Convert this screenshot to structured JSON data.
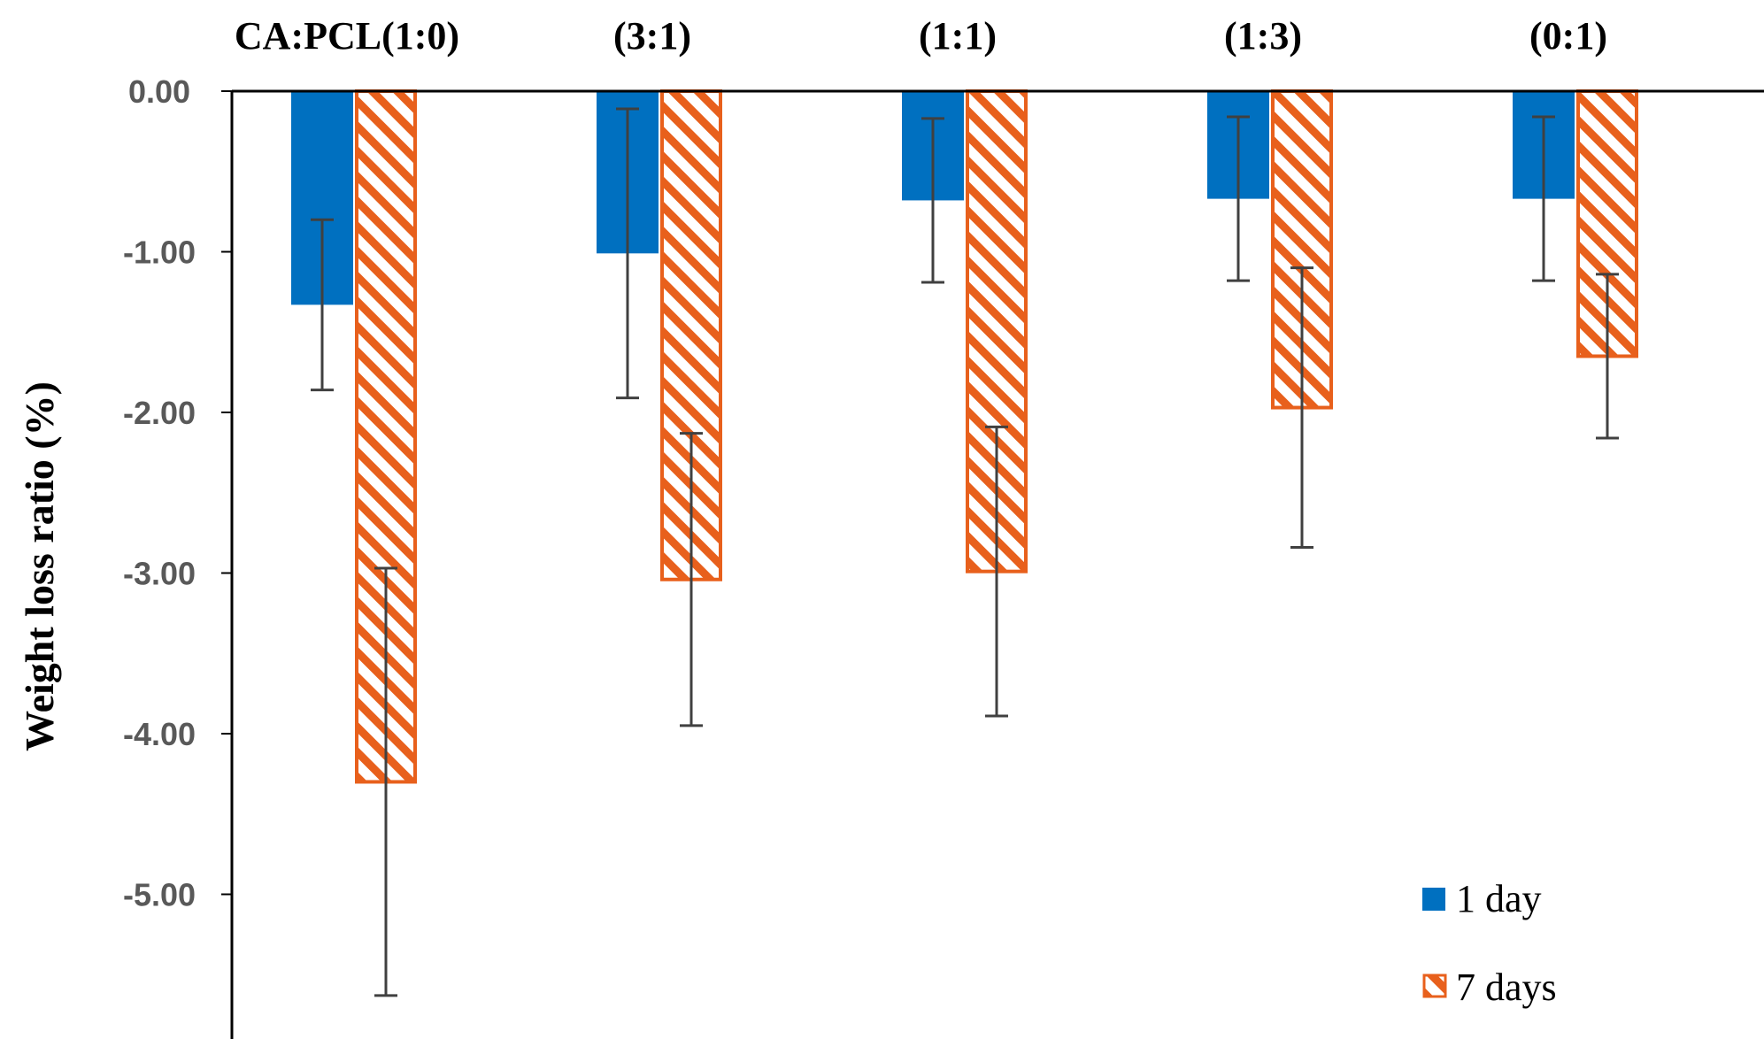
{
  "chart_data": {
    "type": "bar",
    "title": "",
    "xlabel": "",
    "ylabel": "Weight loss ratio (%)",
    "categories": [
      "CA:PCL(1:0)",
      "(3:1)",
      "(1:1)",
      "(1:3)",
      "(0:1)"
    ],
    "category_axis_position": "top",
    "ylim": [
      -5.8,
      0
    ],
    "yticks": [
      0,
      -1,
      -2,
      -3,
      -4,
      -5
    ],
    "ytick_labels": [
      "0.00",
      "-1.00",
      "-2.00",
      "-3.00",
      "-4.00",
      "-5.00"
    ],
    "grid": false,
    "legend_position": "bottom-right",
    "series": [
      {
        "name": "1 day",
        "color": "#0070C0",
        "fill": "solid",
        "values": [
          -1.33,
          -1.01,
          -0.68,
          -0.67,
          -0.67
        ],
        "error_bars": [
          0.53,
          0.9,
          0.51,
          0.51,
          0.51
        ]
      },
      {
        "name": "7 days",
        "color": "#E8601C",
        "fill": "hatched",
        "values": [
          -4.3,
          -3.04,
          -2.99,
          -1.97,
          -1.65
        ],
        "error_bars": [
          1.33,
          0.91,
          0.9,
          0.87,
          0.51
        ]
      }
    ]
  }
}
